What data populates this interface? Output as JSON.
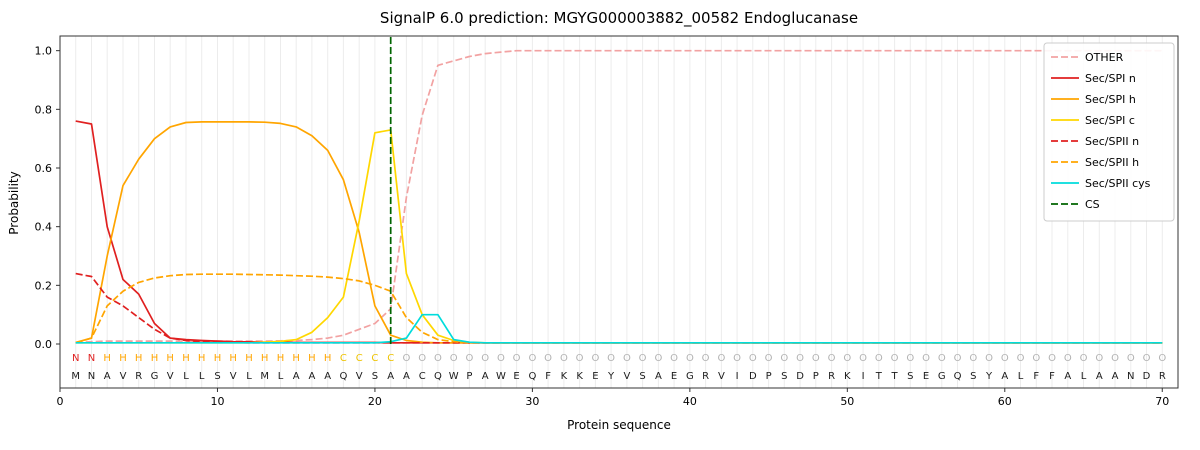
{
  "chart_data": {
    "type": "line",
    "title": "SignalP 6.0 prediction: MGYG000003882_00582 Endoglucanase",
    "xlabel": "Protein sequence",
    "ylabel": "Probability",
    "xlim": [
      0,
      71
    ],
    "ylim": [
      -0.15,
      1.05
    ],
    "xticks": [
      0,
      10,
      20,
      30,
      40,
      50,
      60,
      70
    ],
    "yticks": [
      0.0,
      0.2,
      0.4,
      0.6,
      0.8,
      1.0
    ],
    "x_start": 1,
    "grid": "vertical line at every residue position",
    "legend_position": "upper right",
    "series": [
      {
        "name": "OTHER",
        "color": "#f2a2a2",
        "dash": true,
        "values": [
          0.005,
          0.008,
          0.01,
          0.01,
          0.01,
          0.01,
          0.01,
          0.01,
          0.01,
          0.01,
          0.01,
          0.01,
          0.01,
          0.011,
          0.012,
          0.015,
          0.02,
          0.03,
          0.05,
          0.07,
          0.12,
          0.5,
          0.78,
          0.95,
          0.965,
          0.98,
          0.99,
          0.995,
          1.0,
          1.0,
          1.0,
          1.0,
          1.0,
          1.0,
          1.0,
          1.0,
          1.0,
          1.0,
          1.0,
          1.0,
          1.0,
          1.0,
          1.0,
          1.0,
          1.0,
          1.0,
          1.0,
          1.0,
          1.0,
          1.0,
          1.0,
          1.0,
          1.0,
          1.0,
          1.0,
          1.0,
          1.0,
          1.0,
          1.0,
          1.0,
          1.0,
          1.0,
          1.0,
          1.0,
          1.0,
          1.0,
          1.0,
          1.0,
          1.0,
          1.0
        ]
      },
      {
        "name": "Sec/SPI n",
        "color": "#e02020",
        "dash": false,
        "values": [
          0.76,
          0.75,
          0.4,
          0.22,
          0.17,
          0.07,
          0.02,
          0.015,
          0.012,
          0.01,
          0.008,
          0.007,
          0.006,
          0.006,
          0.005,
          0.005,
          0.005,
          0.005,
          0.005,
          0.005,
          0.004,
          0.004,
          0.004,
          0.004,
          0.004,
          0.004,
          0.004,
          0.004,
          0.004,
          0.004,
          0.004,
          0.004,
          0.004,
          0.004,
          0.004,
          0.004,
          0.004,
          0.004,
          0.004,
          0.004,
          0.004,
          0.004,
          0.004,
          0.004,
          0.004,
          0.004,
          0.004,
          0.004,
          0.004,
          0.004,
          0.004,
          0.004,
          0.004,
          0.004,
          0.004,
          0.004,
          0.004,
          0.004,
          0.004,
          0.004,
          0.004,
          0.004,
          0.004,
          0.004,
          0.004,
          0.004,
          0.004,
          0.004,
          0.004,
          0.004
        ]
      },
      {
        "name": "Sec/SPI h",
        "color": "#ffa500",
        "dash": false,
        "values": [
          0.005,
          0.02,
          0.3,
          0.54,
          0.63,
          0.7,
          0.74,
          0.755,
          0.757,
          0.757,
          0.757,
          0.757,
          0.756,
          0.752,
          0.74,
          0.71,
          0.66,
          0.56,
          0.38,
          0.13,
          0.03,
          0.012,
          0.006,
          0.004,
          0.004,
          0.004,
          0.004,
          0.004,
          0.004,
          0.004,
          0.004,
          0.004,
          0.004,
          0.004,
          0.004,
          0.004,
          0.004,
          0.004,
          0.004,
          0.004,
          0.004,
          0.004,
          0.004,
          0.004,
          0.004,
          0.004,
          0.004,
          0.004,
          0.004,
          0.004,
          0.004,
          0.004,
          0.004,
          0.004,
          0.004,
          0.004,
          0.004,
          0.004,
          0.004,
          0.004,
          0.004,
          0.004,
          0.004,
          0.004,
          0.004,
          0.004,
          0.004,
          0.004,
          0.004,
          0.004
        ]
      },
      {
        "name": "Sec/SPI c",
        "color": "#ffd700",
        "dash": false,
        "values": [
          0.004,
          0.004,
          0.004,
          0.004,
          0.004,
          0.004,
          0.004,
          0.004,
          0.004,
          0.004,
          0.004,
          0.004,
          0.006,
          0.009,
          0.015,
          0.04,
          0.09,
          0.16,
          0.42,
          0.72,
          0.73,
          0.24,
          0.1,
          0.03,
          0.012,
          0.006,
          0.004,
          0.004,
          0.004,
          0.004,
          0.004,
          0.004,
          0.004,
          0.004,
          0.004,
          0.004,
          0.004,
          0.004,
          0.004,
          0.004,
          0.004,
          0.004,
          0.004,
          0.004,
          0.004,
          0.004,
          0.004,
          0.004,
          0.004,
          0.004,
          0.004,
          0.004,
          0.004,
          0.004,
          0.004,
          0.004,
          0.004,
          0.004,
          0.004,
          0.004,
          0.004,
          0.004,
          0.004,
          0.004,
          0.004,
          0.004,
          0.004,
          0.004,
          0.004,
          0.004
        ]
      },
      {
        "name": "Sec/SPII n",
        "color": "#e02020",
        "dash": true,
        "values": [
          0.24,
          0.23,
          0.16,
          0.13,
          0.09,
          0.05,
          0.02,
          0.012,
          0.008,
          0.006,
          0.005,
          0.004,
          0.004,
          0.004,
          0.004,
          0.004,
          0.004,
          0.004,
          0.004,
          0.004,
          0.004,
          0.004,
          0.004,
          0.004,
          0.004,
          0.004,
          0.004,
          0.004,
          0.004,
          0.004,
          0.004,
          0.004,
          0.004,
          0.004,
          0.004,
          0.004,
          0.004,
          0.004,
          0.004,
          0.004,
          0.004,
          0.004,
          0.004,
          0.004,
          0.004,
          0.004,
          0.004,
          0.004,
          0.004,
          0.004,
          0.004,
          0.004,
          0.004,
          0.004,
          0.004,
          0.004,
          0.004,
          0.004,
          0.004,
          0.004,
          0.004,
          0.004,
          0.004,
          0.004,
          0.004,
          0.004,
          0.004,
          0.004,
          0.004,
          0.004
        ]
      },
      {
        "name": "Sec/SPII h",
        "color": "#ffa500",
        "dash": true,
        "values": [
          0.004,
          0.02,
          0.13,
          0.18,
          0.21,
          0.225,
          0.233,
          0.237,
          0.238,
          0.238,
          0.238,
          0.237,
          0.236,
          0.235,
          0.233,
          0.231,
          0.228,
          0.223,
          0.215,
          0.2,
          0.18,
          0.09,
          0.04,
          0.015,
          0.008,
          0.004,
          0.004,
          0.004,
          0.004,
          0.004,
          0.004,
          0.004,
          0.004,
          0.004,
          0.004,
          0.004,
          0.004,
          0.004,
          0.004,
          0.004,
          0.004,
          0.004,
          0.004,
          0.004,
          0.004,
          0.004,
          0.004,
          0.004,
          0.004,
          0.004,
          0.004,
          0.004,
          0.004,
          0.004,
          0.004,
          0.004,
          0.004,
          0.004,
          0.004,
          0.004,
          0.004,
          0.004,
          0.004,
          0.004,
          0.004,
          0.004,
          0.004,
          0.004,
          0.004,
          0.004
        ]
      },
      {
        "name": "Sec/SPII cys",
        "color": "#00dcdc",
        "dash": false,
        "values": [
          0.004,
          0.004,
          0.004,
          0.004,
          0.004,
          0.004,
          0.004,
          0.004,
          0.004,
          0.004,
          0.004,
          0.004,
          0.004,
          0.004,
          0.004,
          0.004,
          0.004,
          0.004,
          0.004,
          0.004,
          0.008,
          0.02,
          0.1,
          0.1,
          0.015,
          0.006,
          0.004,
          0.004,
          0.004,
          0.004,
          0.004,
          0.004,
          0.004,
          0.004,
          0.004,
          0.004,
          0.004,
          0.004,
          0.004,
          0.004,
          0.004,
          0.004,
          0.004,
          0.004,
          0.004,
          0.004,
          0.004,
          0.004,
          0.004,
          0.004,
          0.004,
          0.004,
          0.004,
          0.004,
          0.004,
          0.004,
          0.004,
          0.004,
          0.004,
          0.004,
          0.004,
          0.004,
          0.004,
          0.004,
          0.004,
          0.004,
          0.004,
          0.004,
          0.004,
          0.004
        ]
      }
    ],
    "cs": {
      "label": "CS",
      "x": 21,
      "color": "#006400",
      "dash": true
    },
    "sequence": "MNAVRGVLLSVLMLAAAQVSAACQWPAWEQFKKEYVSAEGRVIDPSDPRKITTSEGQSYALFFALAANDR",
    "region_labels": "NNHHHHHHHHHHHHHHHCCCCOOOOOOOOOOOOOOOOOOOOOOOOOOOOOOOOOOOOOOOOOOOOOOOOO",
    "colors": {
      "grid": "#ececec",
      "axis": "#333333",
      "sequence_text": "#1a1a1a",
      "region": {
        "N": "#e02020",
        "H": "#ffa500",
        "C": "#eec300",
        "O": "#b3b3b3"
      }
    }
  }
}
